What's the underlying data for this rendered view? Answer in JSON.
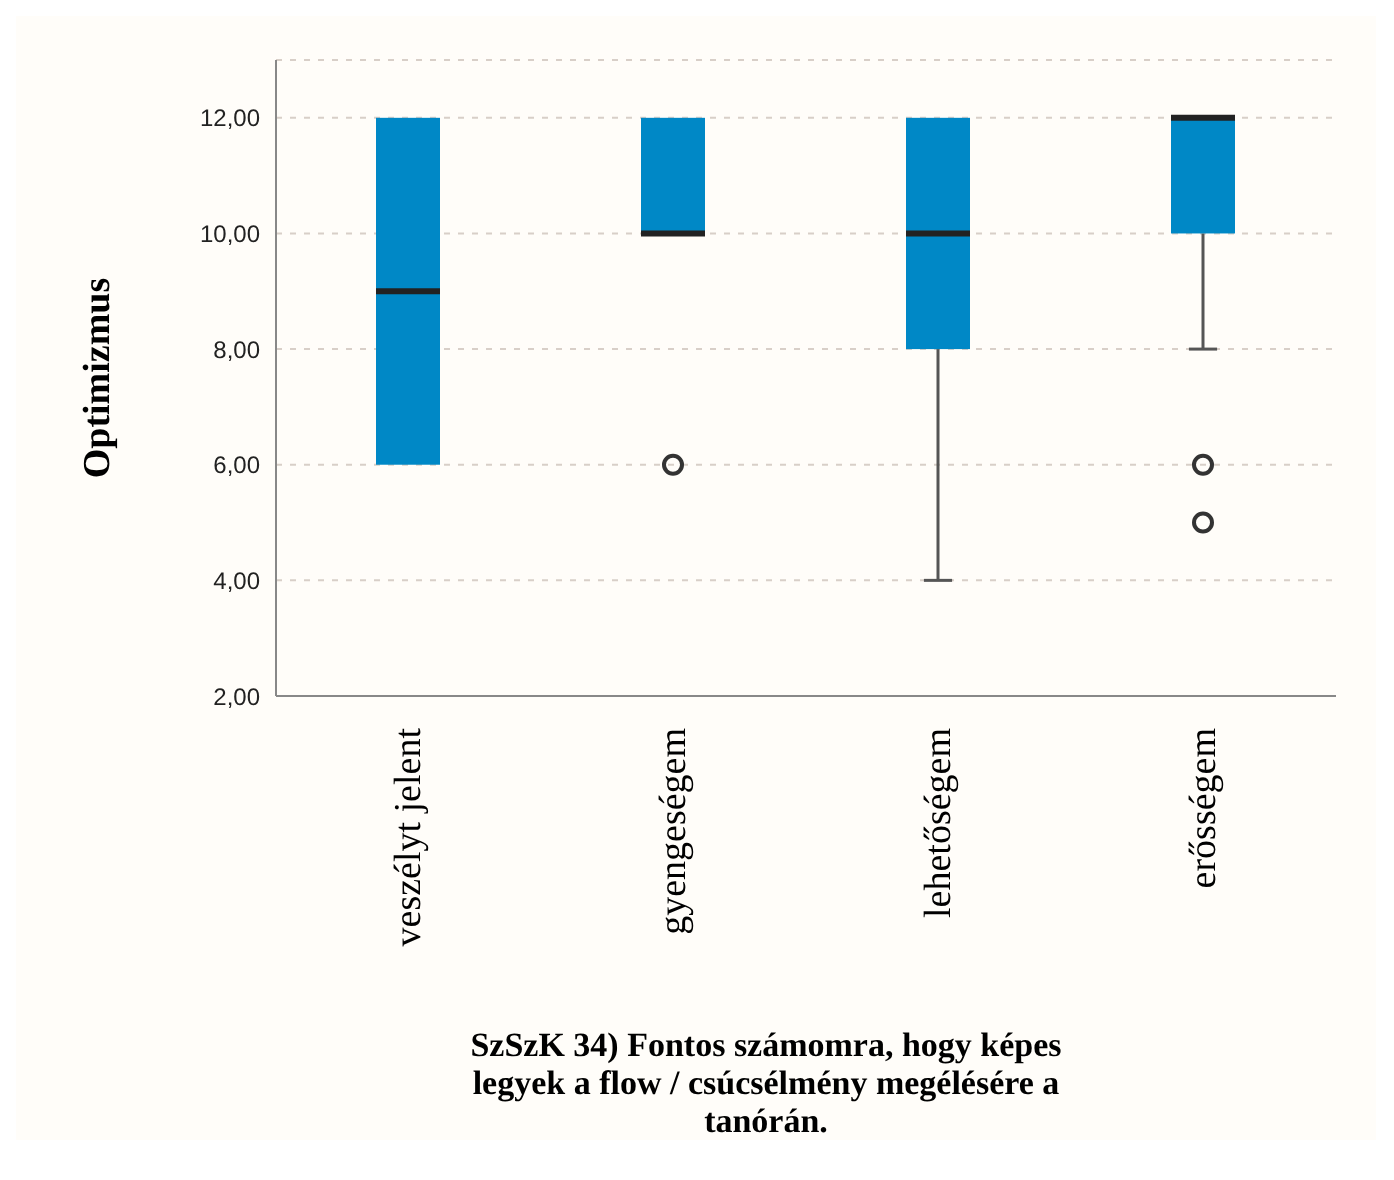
{
  "chart_data": {
    "type": "box",
    "title": "SzSzK 34) Fontos számomra, hogy képes legyek a flow / csúcsélmény megélésére a tanórán.",
    "ylabel": "Optimizmus",
    "categories": [
      "veszélyt jelent",
      "gyengeségem",
      "lehetőségem",
      "erősségem"
    ],
    "boxes": [
      {
        "low": 6,
        "q1": 6,
        "median": 9,
        "q3": 12,
        "high": 12
      },
      {
        "low": 10,
        "q1": 10,
        "median": 10,
        "q3": 12,
        "high": 12,
        "outliers": [
          6
        ]
      },
      {
        "low": 4,
        "q1": 8,
        "median": 10,
        "q3": 12,
        "high": 12
      },
      {
        "low": 8,
        "q1": 10,
        "median": 12,
        "q3": 12,
        "high": 12,
        "outliers": [
          6,
          5
        ]
      }
    ],
    "color": "#0088c6",
    "ylim": [
      2,
      13
    ],
    "yticks": [
      {
        "value": 2,
        "label": "2,00"
      },
      {
        "value": 4,
        "label": "4,00"
      },
      {
        "value": 6,
        "label": "6,00"
      },
      {
        "value": 8,
        "label": "8,00"
      },
      {
        "value": 10,
        "label": "10,00"
      },
      {
        "value": 12,
        "label": "12,00"
      }
    ],
    "grid": "y"
  }
}
